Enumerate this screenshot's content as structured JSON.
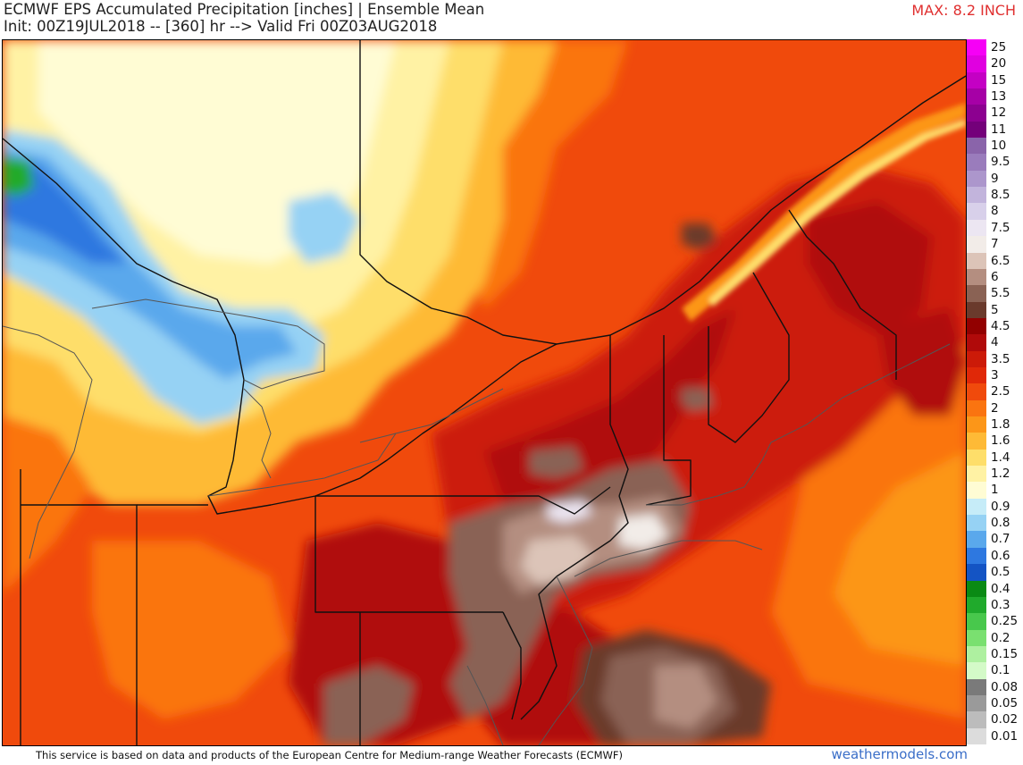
{
  "header": {
    "title": "ECMWF EPS Accumulated Precipitation [inches] | Ensemble Mean",
    "subtitle": "Init: 00Z19JUL2018 -- [360] hr --> Valid Fri 00Z03AUG2018",
    "max_label": "MAX: 8.2 INCH"
  },
  "footer": {
    "disclaimer": "This service is based on data and products of the European Centre for Medium-range Weather Forecasts (ECMWF)",
    "brand": "weathermodels.com"
  },
  "legend": [
    {
      "label": "25",
      "color": "#f600f6"
    },
    {
      "label": "20",
      "color": "#e000e0"
    },
    {
      "label": "15",
      "color": "#c400c4"
    },
    {
      "label": "13",
      "color": "#a600a6"
    },
    {
      "label": "12",
      "color": "#8c0090"
    },
    {
      "label": "11",
      "color": "#74007a"
    },
    {
      "label": "10",
      "color": "#8a64aa"
    },
    {
      "label": "9.5",
      "color": "#9a7cbc"
    },
    {
      "label": "9",
      "color": "#ac96cc"
    },
    {
      "label": "8.5",
      "color": "#c2b4dc"
    },
    {
      "label": "8",
      "color": "#d8d0ea"
    },
    {
      "label": "7.5",
      "color": "#ece6f2"
    },
    {
      "label": "7",
      "color": "#f2ece8"
    },
    {
      "label": "6.5",
      "color": "#dcc4b8"
    },
    {
      "label": "6",
      "color": "#b48e80"
    },
    {
      "label": "5.5",
      "color": "#8a6254"
    },
    {
      "label": "5",
      "color": "#6a3a2c"
    },
    {
      "label": "4.5",
      "color": "#920000"
    },
    {
      "label": "4",
      "color": "#b00a0a"
    },
    {
      "label": "3.5",
      "color": "#cc1a08"
    },
    {
      "label": "3",
      "color": "#e02808"
    },
    {
      "label": "2.5",
      "color": "#f04a0c"
    },
    {
      "label": "2",
      "color": "#fa7410"
    },
    {
      "label": "1.8",
      "color": "#fc9618"
    },
    {
      "label": "1.6",
      "color": "#feba36"
    },
    {
      "label": "1.4",
      "color": "#fede6a"
    },
    {
      "label": "1.2",
      "color": "#fff2a4"
    },
    {
      "label": "1",
      "color": "#fffcd4"
    },
    {
      "label": "0.9",
      "color": "#c6ecf8"
    },
    {
      "label": "0.8",
      "color": "#96d2f4"
    },
    {
      "label": "0.7",
      "color": "#5aa8ec"
    },
    {
      "label": "0.6",
      "color": "#2e78e0"
    },
    {
      "label": "0.5",
      "color": "#1454c4"
    },
    {
      "label": "0.4",
      "color": "#0a8a14"
    },
    {
      "label": "0.3",
      "color": "#20aa2c"
    },
    {
      "label": "0.25",
      "color": "#48c84c"
    },
    {
      "label": "0.2",
      "color": "#7ae070"
    },
    {
      "label": "0.15",
      "color": "#aef0a0"
    },
    {
      "label": "0.1",
      "color": "#d4fac8"
    },
    {
      "label": "0.08",
      "color": "#7a7a7a"
    },
    {
      "label": "0.05",
      "color": "#9a9a9a"
    },
    {
      "label": "0.02",
      "color": "#bcbcbc"
    },
    {
      "label": "0.01",
      "color": "#dcdcdc"
    }
  ]
}
